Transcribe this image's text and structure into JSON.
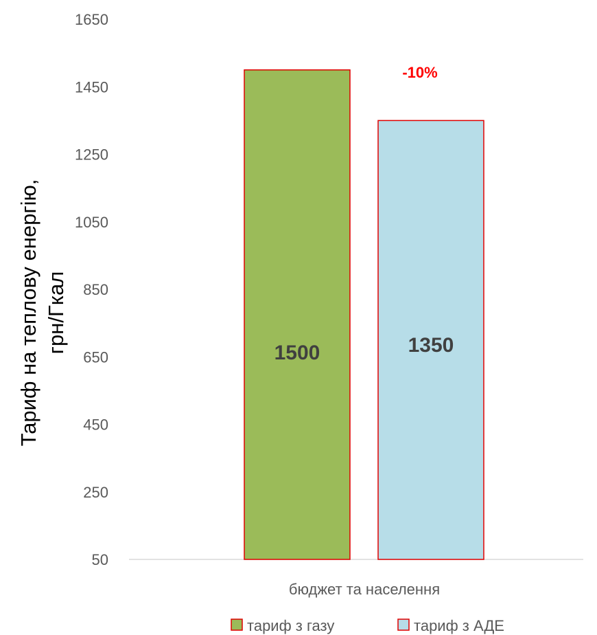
{
  "chart_data": {
    "type": "bar",
    "categories": [
      "бюджет та населення"
    ],
    "series": [
      {
        "name": "тариф з газу",
        "values": [
          1500
        ],
        "color": "#9bbb59",
        "border": "#e00000"
      },
      {
        "name": "тариф з АДЕ",
        "values": [
          1350
        ],
        "color": "#b7dde8",
        "border": "#e00000"
      }
    ],
    "data_labels": [
      "1500",
      "1350"
    ],
    "ylabel_lines": [
      "Тариф на теплову енергію,",
      "грн/Гкал"
    ],
    "ylim": [
      50,
      1650
    ],
    "yticks": [
      50,
      250,
      450,
      650,
      850,
      1050,
      1250,
      1450,
      1650
    ],
    "annotation": {
      "text": "-10%",
      "color": "#ff0000"
    },
    "legend_position": "bottom",
    "grid": false
  }
}
